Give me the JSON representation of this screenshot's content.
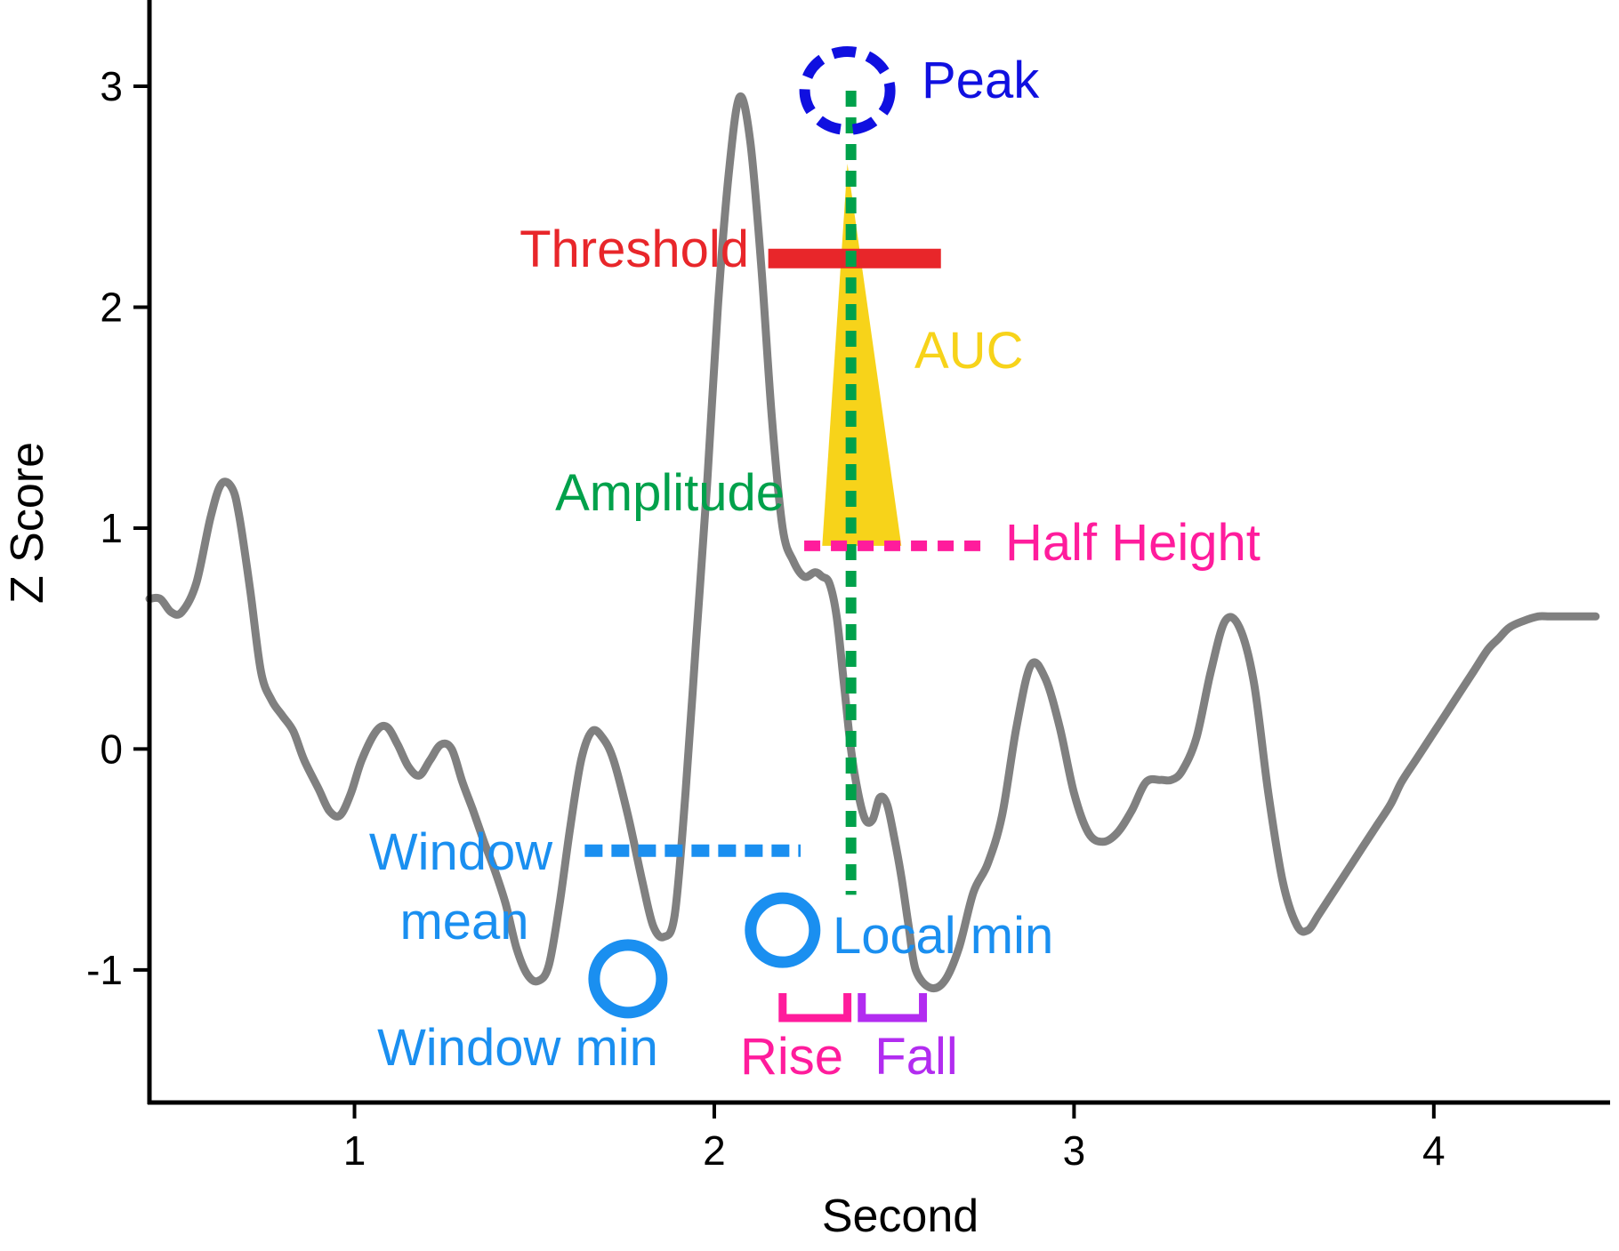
{
  "colors": {
    "trace": "#808080",
    "peak": "#1010e0",
    "threshold": "#e8262a",
    "auc": "#f7d31a",
    "amplitude": "#00a14b",
    "half_height": "#ff1c9c",
    "window": "#1a8ff0",
    "rise": "#ff1c9c",
    "fall": "#b22cf0",
    "axis": "#000000"
  },
  "chart_data": {
    "type": "line",
    "title": "",
    "xlabel": "Second",
    "ylabel": "Z Score",
    "xlim": [
      0.43,
      4.49
    ],
    "ylim": [
      -1.6,
      3.35
    ],
    "xticks": [
      1,
      2,
      3,
      4
    ],
    "xtick_labels": [
      "1",
      "2",
      "3",
      "4"
    ],
    "yticks": [
      -1,
      0,
      1,
      2,
      3
    ],
    "ytick_labels": [
      "-1",
      "0",
      "1",
      "2",
      "3"
    ],
    "grid": false,
    "series": [
      {
        "x": [
          0.43,
          0.46,
          0.49,
          0.52,
          0.56,
          0.6,
          0.63,
          0.66,
          0.68,
          0.71,
          0.74,
          0.77,
          0.8,
          0.83,
          0.86,
          0.9,
          0.93,
          0.96,
          0.99,
          1.02,
          1.06,
          1.09,
          1.12,
          1.15,
          1.18,
          1.21,
          1.24,
          1.27,
          1.3,
          1.33,
          1.36,
          1.39,
          1.42,
          1.45,
          1.48,
          1.51,
          1.54,
          1.57,
          1.6,
          1.63,
          1.66,
          1.69,
          1.72,
          1.76,
          1.8,
          1.83,
          1.86,
          1.89,
          1.92,
          1.95,
          1.98,
          2.01,
          2.04,
          2.07,
          2.1,
          2.13,
          2.16,
          2.19,
          2.22,
          2.25,
          2.28,
          2.3,
          2.32,
          2.34,
          2.36,
          2.38,
          2.4,
          2.42,
          2.44,
          2.46,
          2.48,
          2.5,
          2.52,
          2.54,
          2.56,
          2.6,
          2.64,
          2.68,
          2.72,
          2.76,
          2.8,
          2.84,
          2.88,
          2.92,
          2.96,
          3.0,
          3.04,
          3.08,
          3.12,
          3.16,
          3.2,
          3.24,
          3.27,
          3.3,
          3.34,
          3.38,
          3.42,
          3.46,
          3.5,
          3.54,
          3.58,
          3.62,
          3.65,
          3.68,
          3.72,
          3.76,
          3.8,
          3.84,
          3.88,
          3.91,
          3.95,
          3.99,
          4.03,
          4.07,
          4.11,
          4.15,
          4.18,
          4.21,
          4.25,
          4.29,
          4.32,
          4.35,
          4.38,
          4.41,
          4.45
        ],
        "y": [
          0.68,
          0.68,
          0.62,
          0.62,
          0.75,
          1.05,
          1.2,
          1.18,
          1.05,
          0.72,
          0.35,
          0.22,
          0.15,
          0.08,
          -0.05,
          -0.18,
          -0.28,
          -0.3,
          -0.2,
          -0.05,
          0.08,
          0.1,
          0.02,
          -0.08,
          -0.12,
          -0.05,
          0.02,
          0.0,
          -0.15,
          -0.28,
          -0.42,
          -0.55,
          -0.7,
          -0.9,
          -1.02,
          -1.05,
          -0.98,
          -0.7,
          -0.35,
          -0.05,
          0.08,
          0.05,
          -0.05,
          -0.3,
          -0.6,
          -0.8,
          -0.85,
          -0.75,
          -0.2,
          0.5,
          1.2,
          2.0,
          2.6,
          2.95,
          2.75,
          2.2,
          1.5,
          1.0,
          0.85,
          0.78,
          0.8,
          0.78,
          0.75,
          0.6,
          0.3,
          0.0,
          -0.2,
          -0.32,
          -0.32,
          -0.22,
          -0.25,
          -0.4,
          -0.58,
          -0.8,
          -1.0,
          -1.08,
          -1.05,
          -0.9,
          -0.65,
          -0.52,
          -0.3,
          0.1,
          0.38,
          0.32,
          0.1,
          -0.2,
          -0.38,
          -0.42,
          -0.38,
          -0.28,
          -0.15,
          -0.14,
          -0.14,
          -0.1,
          0.05,
          0.35,
          0.58,
          0.55,
          0.3,
          -0.2,
          -0.6,
          -0.8,
          -0.82,
          -0.75,
          -0.65,
          -0.55,
          -0.45,
          -0.35,
          -0.25,
          -0.15,
          -0.05,
          0.05,
          0.15,
          0.25,
          0.35,
          0.45,
          0.5,
          0.55,
          0.58,
          0.6,
          0.6,
          0.6,
          0.6,
          0.6,
          0.6
        ]
      }
    ],
    "annotations": [
      {
        "label": "Peak",
        "x": 2.37,
        "y": 2.98
      },
      {
        "label": "Threshold",
        "y": 2.22,
        "x_range": [
          2.15,
          2.63
        ]
      },
      {
        "label": "AUC",
        "x_range": [
          2.3,
          2.52
        ],
        "y_from": 0.92,
        "y_to": 2.65
      },
      {
        "label": "Amplitude",
        "x": 2.38,
        "y_range": [
          -0.66,
          2.98
        ]
      },
      {
        "label": "Half Height",
        "y": 0.92,
        "x_range": [
          2.25,
          2.75
        ]
      },
      {
        "label": "Window mean",
        "y": -0.46,
        "x_range": [
          1.64,
          2.24
        ]
      },
      {
        "label": "Local min",
        "x": 2.19,
        "y": -0.82
      },
      {
        "label": "Window min",
        "x": 1.76,
        "y": -1.04
      },
      {
        "label": "Rise",
        "x_range": [
          2.19,
          2.37
        ]
      },
      {
        "label": "Fall",
        "x_range": [
          2.41,
          2.58
        ]
      }
    ]
  },
  "labels": {
    "peak": "Peak",
    "threshold": "Threshold",
    "auc": "AUC",
    "amplitude": "Amplitude",
    "half_height": "Half Height",
    "window_mean_line1": "Window",
    "window_mean_line2": "mean",
    "local_min": "Local min",
    "window_min": "Window min",
    "rise": "Rise",
    "fall": "Fall"
  }
}
